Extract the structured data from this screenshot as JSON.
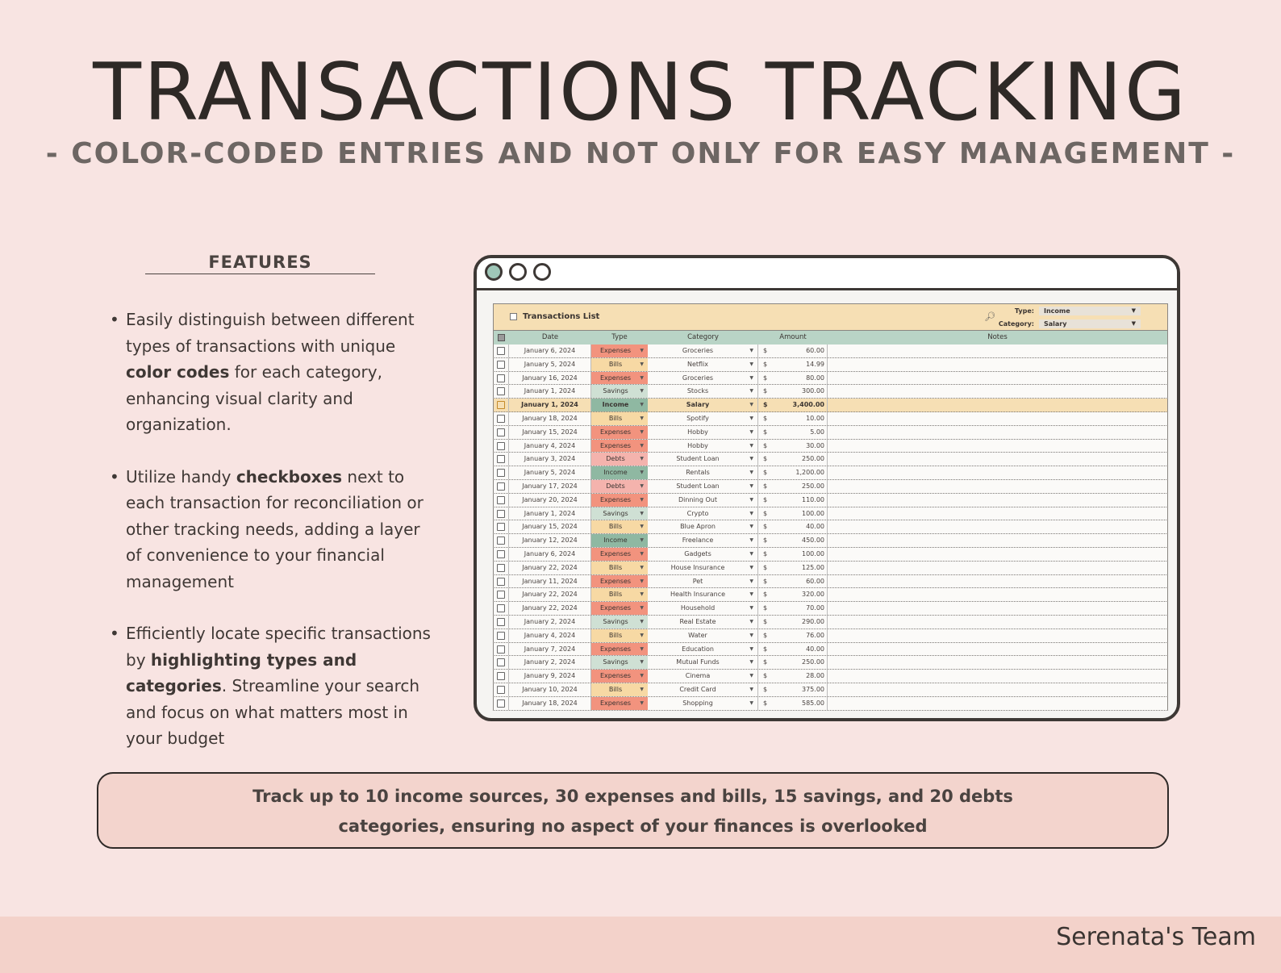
{
  "title": "TRANSACTIONS TRACKING",
  "subtitle": "- COLOR-CODED ENTRIES AND NOT ONLY FOR EASY MANAGEMENT -",
  "features": {
    "heading": "FEATURES",
    "items": [
      {
        "parts": [
          "Easily distinguish between different types of transactions with unique ",
          "color codes",
          " for each category, enhancing visual clarity and organization."
        ]
      },
      {
        "parts": [
          "Utilize handy ",
          "checkboxes",
          " next to each transaction for reconciliation or other tracking needs, adding a layer of convenience to your financial management"
        ]
      },
      {
        "parts": [
          "Efficiently locate specific transactions by ",
          "highlighting types and categories",
          ". Streamline your search and focus on what matters most in your budget"
        ]
      }
    ]
  },
  "sheet": {
    "title": "Transactions List",
    "filter_type_label": "Type:",
    "filter_type_value": "Income",
    "filter_category_label": "Category:",
    "filter_category_value": "Salary",
    "columns": {
      "date": "Date",
      "type": "Type",
      "category": "Category",
      "amount": "Amount",
      "notes": "Notes"
    },
    "currency": "$",
    "rows": [
      {
        "date": "January 6, 2024",
        "type": "Expenses",
        "category": "Groceries",
        "amount": "60.00"
      },
      {
        "date": "January 5, 2024",
        "type": "Bills",
        "category": "Netflix",
        "amount": "14.99"
      },
      {
        "date": "January 16, 2024",
        "type": "Expenses",
        "category": "Groceries",
        "amount": "80.00"
      },
      {
        "date": "January 1, 2024",
        "type": "Savings",
        "category": "Stocks",
        "amount": "300.00"
      },
      {
        "date": "January 1, 2024",
        "type": "Income",
        "category": "Salary",
        "amount": "3,400.00",
        "highlight": true
      },
      {
        "date": "January 18, 2024",
        "type": "Bills",
        "category": "Spotify",
        "amount": "10.00"
      },
      {
        "date": "January 15, 2024",
        "type": "Expenses",
        "category": "Hobby",
        "amount": "5.00"
      },
      {
        "date": "January 4, 2024",
        "type": "Expenses",
        "category": "Hobby",
        "amount": "30.00"
      },
      {
        "date": "January 3, 2024",
        "type": "Debts",
        "category": "Student Loan",
        "amount": "250.00"
      },
      {
        "date": "January 5, 2024",
        "type": "Income",
        "category": "Rentals",
        "amount": "1,200.00"
      },
      {
        "date": "January 17, 2024",
        "type": "Debts",
        "category": "Student Loan",
        "amount": "250.00"
      },
      {
        "date": "January 20, 2024",
        "type": "Expenses",
        "category": "Dinning Out",
        "amount": "110.00"
      },
      {
        "date": "January 1, 2024",
        "type": "Savings",
        "category": "Crypto",
        "amount": "100.00"
      },
      {
        "date": "January 15, 2024",
        "type": "Bills",
        "category": "Blue Apron",
        "amount": "40.00"
      },
      {
        "date": "January 12, 2024",
        "type": "Income",
        "category": "Freelance",
        "amount": "450.00"
      },
      {
        "date": "January 6, 2024",
        "type": "Expenses",
        "category": "Gadgets",
        "amount": "100.00"
      },
      {
        "date": "January 22, 2024",
        "type": "Bills",
        "category": "House Insurance",
        "amount": "125.00"
      },
      {
        "date": "January 11, 2024",
        "type": "Expenses",
        "category": "Pet",
        "amount": "60.00"
      },
      {
        "date": "January 22, 2024",
        "type": "Bills",
        "category": "Health Insurance",
        "amount": "320.00"
      },
      {
        "date": "January 22, 2024",
        "type": "Expenses",
        "category": "Household",
        "amount": "70.00"
      },
      {
        "date": "January 2, 2024",
        "type": "Savings",
        "category": "Real Estate",
        "amount": "290.00"
      },
      {
        "date": "January 4, 2024",
        "type": "Bills",
        "category": "Water",
        "amount": "76.00"
      },
      {
        "date": "January 7, 2024",
        "type": "Expenses",
        "category": "Education",
        "amount": "40.00"
      },
      {
        "date": "January 2, 2024",
        "type": "Savings",
        "category": "Mutual Funds",
        "amount": "250.00"
      },
      {
        "date": "January 9, 2024",
        "type": "Expenses",
        "category": "Cinema",
        "amount": "28.00"
      },
      {
        "date": "January 10, 2024",
        "type": "Bills",
        "category": "Credit Card",
        "amount": "375.00"
      },
      {
        "date": "January 18, 2024",
        "type": "Expenses",
        "category": "Shopping",
        "amount": "585.00"
      }
    ]
  },
  "banner": {
    "line1": "Track up to 10 income sources, 30 expenses and bills, 15 savings, and 20 debts",
    "line2": "categories, ensuring no aspect of your finances is overlooked"
  },
  "footer": "Serenata's Team",
  "colors": {
    "background": "#f8e4e2",
    "expenses": "#f2937e",
    "bills": "#f7d9a4",
    "savings": "#cfe0d4",
    "income": "#8fb8a2",
    "debts": "#f4b3ad",
    "header": "#f6dfb4",
    "column_header": "#b9d4c6"
  }
}
